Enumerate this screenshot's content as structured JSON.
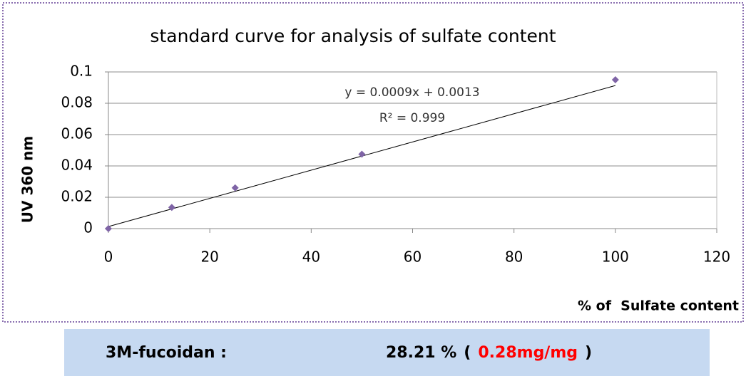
{
  "chart_data": {
    "type": "scatter",
    "title": "standard curve for analysis of sulfate content",
    "x_label": "% of  Sulfate content",
    "y_label": "UV 360 nm",
    "x": [
      0,
      12.5,
      25,
      50,
      100
    ],
    "values": [
      0,
      0.0135,
      0.026,
      0.0475,
      0.095
    ],
    "color": "#7f64a6",
    "trendline": {
      "x": [
        0,
        100
      ],
      "values": [
        0.0013,
        0.0913
      ],
      "color": "#000000"
    },
    "annotations": [
      "y = 0.0009x + 0.0013",
      "R² = 0.999"
    ],
    "xlim": [
      0,
      120
    ],
    "xticks": [
      0,
      20,
      40,
      60,
      80,
      100,
      120
    ],
    "ylim": [
      0,
      0.1
    ],
    "yticks": [
      0,
      0.02,
      0.04,
      0.06,
      0.08,
      0.1
    ],
    "grid": true
  },
  "result": {
    "label": "3M-fucoidan :",
    "value": "28.21 %",
    "open": "(",
    "detail": "0.28mg/mg",
    "close": ")"
  }
}
